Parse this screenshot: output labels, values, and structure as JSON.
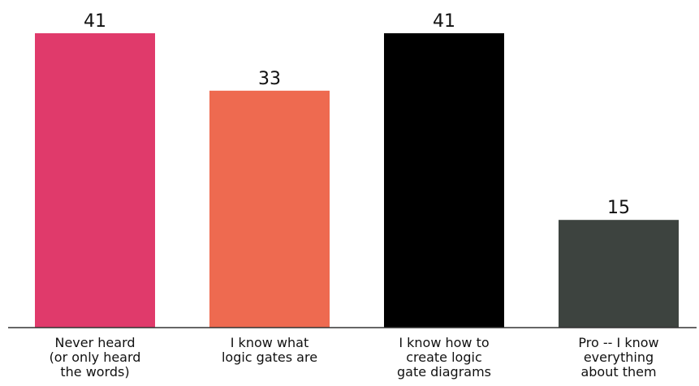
{
  "chart_data": {
    "type": "bar",
    "categories": [
      [
        "Never heard",
        "(or only heard",
        "the words)"
      ],
      [
        "I know what",
        "logic gates are"
      ],
      [
        "I know how to",
        "create logic",
        "gate diagrams"
      ],
      [
        "Pro -- I know",
        "everything",
        "about them"
      ]
    ],
    "values": [
      41,
      33,
      41,
      15
    ],
    "colors": [
      "#e03a6b",
      "#ee6a50",
      "#000000",
      "#3d433f"
    ],
    "title": "",
    "xlabel": "",
    "ylabel": "",
    "ylim": [
      0,
      41
    ],
    "grid": false,
    "legend": "none"
  }
}
